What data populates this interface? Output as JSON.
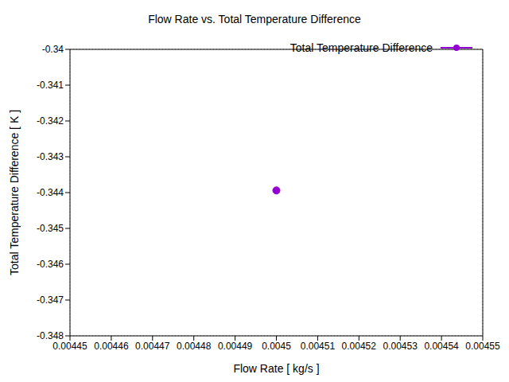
{
  "chart_data": {
    "type": "scatter",
    "title": "Flow Rate vs. Total Temperature Difference",
    "x_label": "Flow Rate [ kg/s ]",
    "y_label": "Total Temperature Difference [ K ]",
    "x": [
      0.0045
    ],
    "series": [
      {
        "name": "Total Temperature Difference",
        "color": "#9400d3",
        "marker": "circle",
        "line_style": "solid",
        "values": [
          -0.34394
        ]
      }
    ],
    "xlim": [
      0.00445,
      0.00455
    ],
    "xticks": [
      0.00445,
      0.00446,
      0.00447,
      0.00448,
      0.00449,
      0.0045,
      0.00451,
      0.00452,
      0.00453,
      0.00454,
      0.00455
    ],
    "ylim": [
      -0.348,
      -0.34
    ],
    "yticks": [
      -0.348,
      -0.347,
      -0.346,
      -0.345,
      -0.344,
      -0.343,
      -0.342,
      -0.341,
      -0.34
    ],
    "grid": true,
    "legend": "top-right"
  }
}
